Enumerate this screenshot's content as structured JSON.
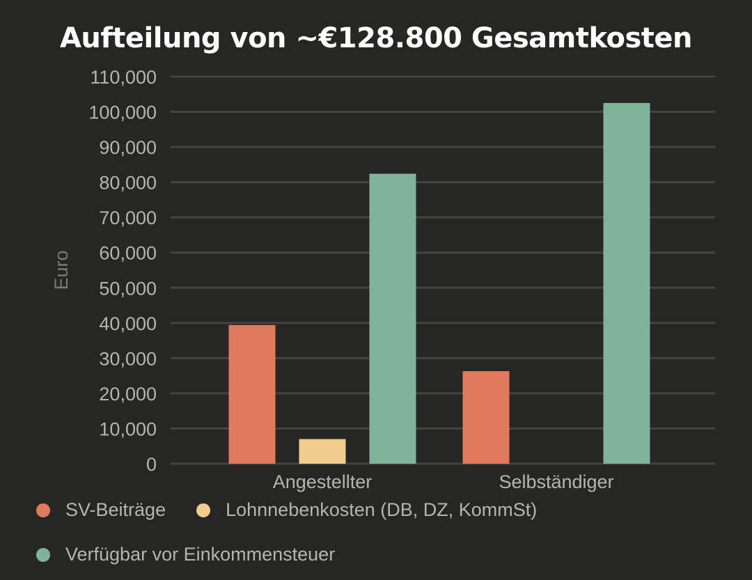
{
  "chart_data": {
    "type": "bar",
    "title": "Aufteilung von ~€128.800 Gesamtkosten",
    "xlabel": "",
    "ylabel": "Euro",
    "ylim": [
      0,
      110000
    ],
    "yticks": [
      0,
      10000,
      20000,
      30000,
      40000,
      50000,
      60000,
      70000,
      80000,
      90000,
      100000,
      110000
    ],
    "ytick_labels": [
      "0",
      "10,000",
      "20,000",
      "30,000",
      "40,000",
      "50,000",
      "60,000",
      "70,000",
      "80,000",
      "90,000",
      "100,000",
      "110,000"
    ],
    "grid": true,
    "legend_position": "bottom",
    "categories": [
      "Angestellter",
      "Selbständiger"
    ],
    "series": [
      {
        "name": "SV-Beiträge",
        "color": "#e07a5f",
        "values": [
          39400,
          26300
        ]
      },
      {
        "name": "Lohnnebenkosten (DB, DZ, KommSt)",
        "color": "#f2cc8f",
        "values": [
          7000,
          0
        ]
      },
      {
        "name": "Verfügbar vor Einkommensteuer",
        "color": "#81b29a",
        "values": [
          82400,
          102500
        ]
      }
    ]
  }
}
